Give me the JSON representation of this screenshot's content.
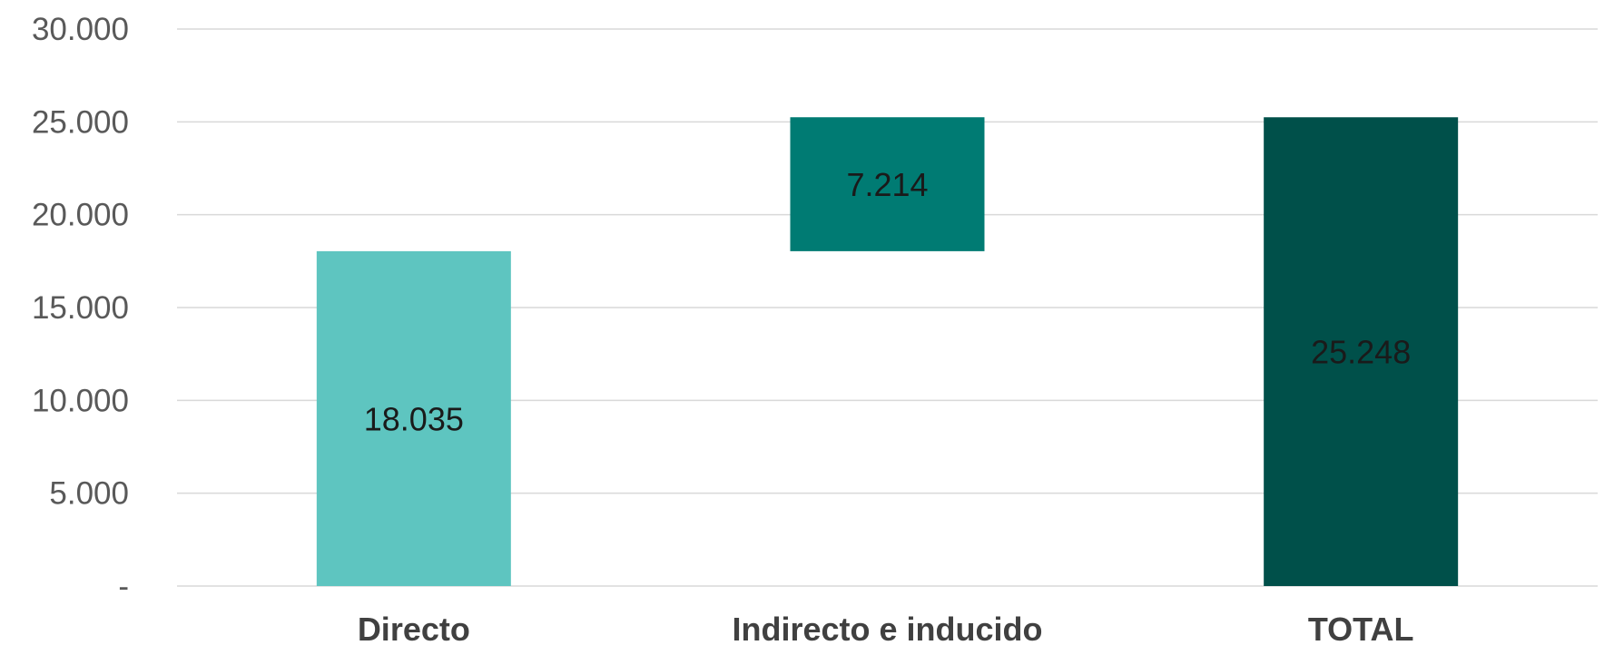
{
  "chart_data": {
    "type": "bar",
    "subtype": "waterfall",
    "categories": [
      "Directo",
      "Indirecto e inducido",
      "TOTAL"
    ],
    "bars": [
      {
        "category": "Directo",
        "base": 0,
        "value": 18035,
        "label": "18.035",
        "color": "#5ec5c0"
      },
      {
        "category": "Indirecto e inducido",
        "base": 18035,
        "value": 7214,
        "label": "7.214",
        "color": "#007b73"
      },
      {
        "category": "TOTAL",
        "base": 0,
        "value": 25248,
        "label": "25.248",
        "color": "#00504a"
      }
    ],
    "ylim": [
      0,
      30000
    ],
    "yticks": [
      {
        "value": 0,
        "label": "-"
      },
      {
        "value": 5000,
        "label": "5.000"
      },
      {
        "value": 10000,
        "label": "10.000"
      },
      {
        "value": 15000,
        "label": "15.000"
      },
      {
        "value": 20000,
        "label": "20.000"
      },
      {
        "value": 25000,
        "label": "25.000"
      },
      {
        "value": 30000,
        "label": "30.000"
      }
    ],
    "grid": true,
    "legend": "none"
  }
}
